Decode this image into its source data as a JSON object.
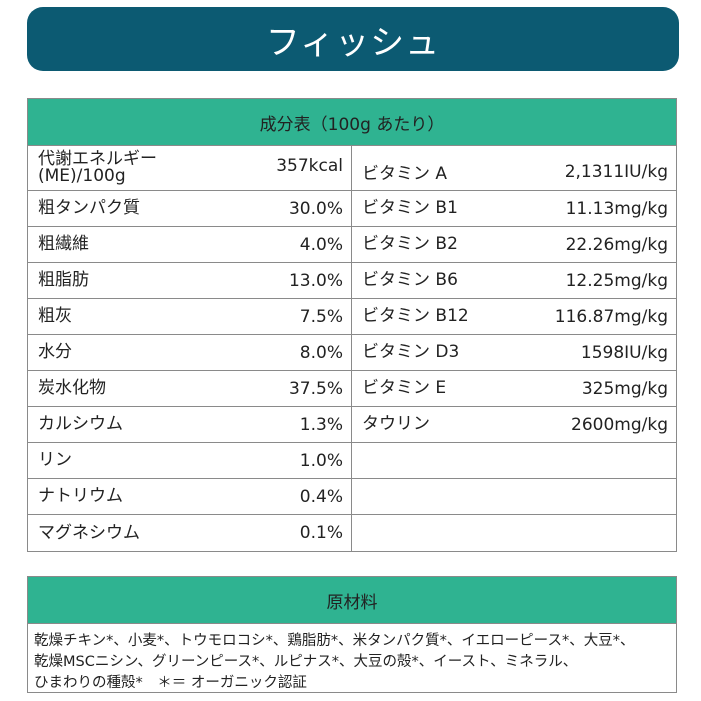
{
  "title": "フィッシュ",
  "nutrition": {
    "header": "成分表（100g あたり）",
    "left": [
      {
        "label": "代謝エネルギー(ME)/100g",
        "label_line1": "代謝エネルギー",
        "label_line2": "(ME)/100g",
        "value": "357kcal"
      },
      {
        "label": "粗タンパク質",
        "value": "30.0%"
      },
      {
        "label": "粗繊維",
        "value": "4.0%"
      },
      {
        "label": "粗脂肪",
        "value": "13.0%"
      },
      {
        "label": "粗灰",
        "value": "7.5%"
      },
      {
        "label": "水分",
        "value": "8.0%"
      },
      {
        "label": "炭水化物",
        "value": "37.5%"
      },
      {
        "label": "カルシウム",
        "value": "1.3%"
      },
      {
        "label": "リン",
        "value": "1.0%"
      },
      {
        "label": "ナトリウム",
        "value": "0.4%"
      },
      {
        "label": "マグネシウム",
        "value": "0.1%"
      }
    ],
    "right": [
      {
        "label": "ビタミン A",
        "value": "2,1311IU/kg"
      },
      {
        "label": "ビタミン B1",
        "value": "11.13mg/kg"
      },
      {
        "label": "ビタミン B2",
        "value": "22.26mg/kg"
      },
      {
        "label": "ビタミン B6",
        "value": "12.25mg/kg"
      },
      {
        "label": "ビタミン B12",
        "value": "116.87mg/kg"
      },
      {
        "label": "ビタミン D3",
        "value": "1598IU/kg"
      },
      {
        "label": "ビタミン E",
        "value": "325mg/kg"
      },
      {
        "label": "タウリン",
        "value": "2600mg/kg"
      }
    ]
  },
  "ingredients": {
    "header": "原材料",
    "lines": [
      "乾燥チキン*、小麦*、トウモロコシ*、鶏脂肪*、米タンパク質*、イエローピース*、大豆*、",
      "乾燥MSCニシン、グリーンピース*、ルピナス*、大豆の殻*、イースト、ミネラル、",
      "ひまわりの種殻*　＊＝ オーガニック認証"
    ]
  },
  "colors": {
    "title_bg": "#0c5a72",
    "header_bg": "#2fb391",
    "border": "#8a8a8a"
  }
}
